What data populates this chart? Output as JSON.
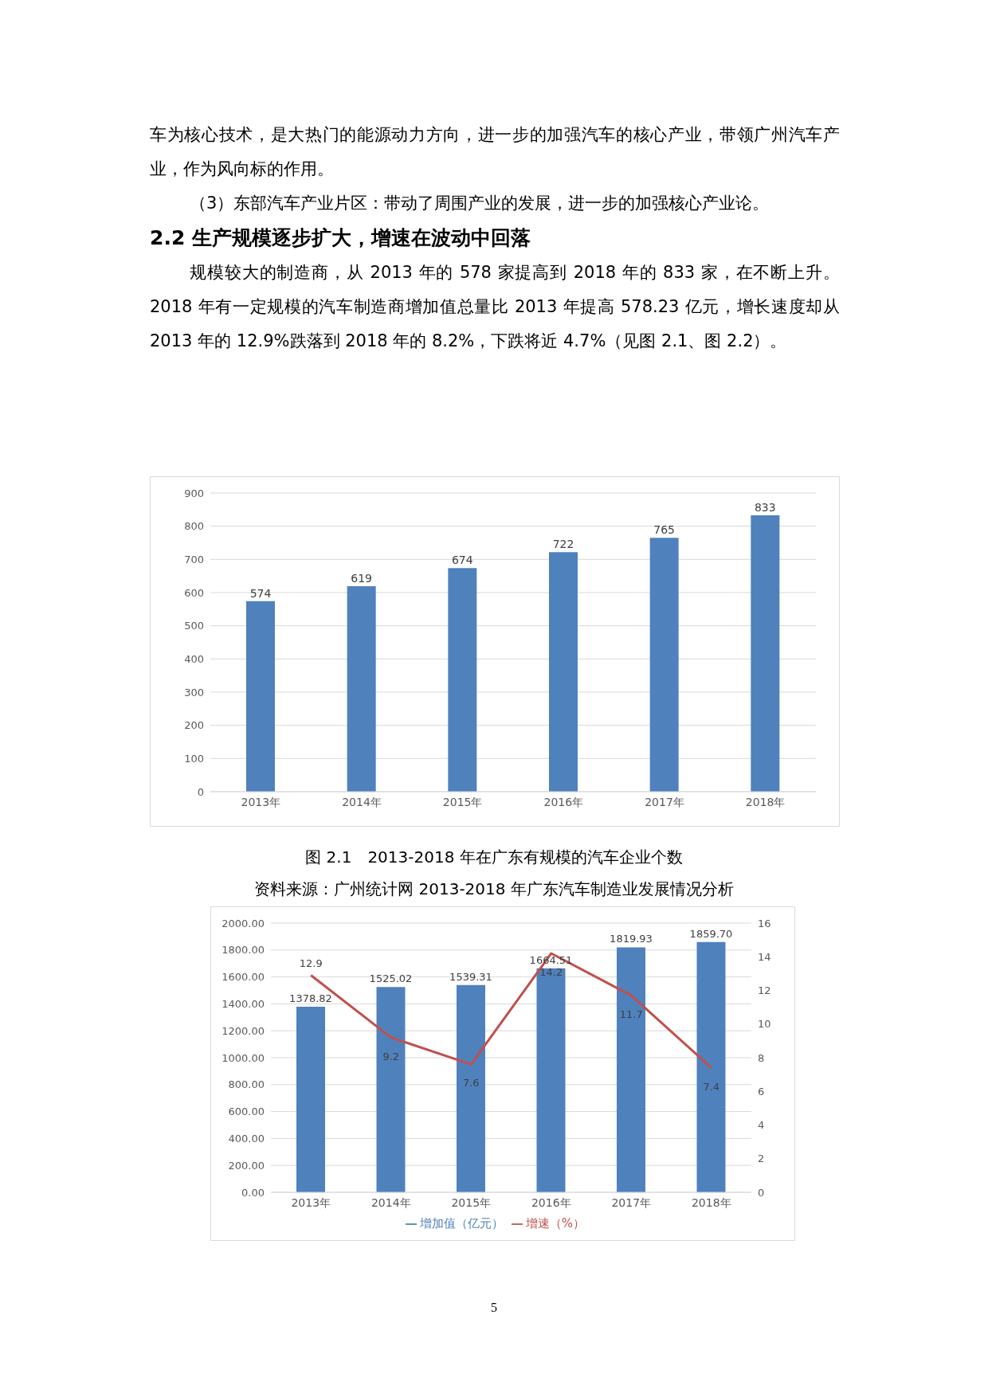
{
  "chart_data": [
    {
      "type": "bar",
      "annotations": [
        "车为核心技术，是大热门的能源动力方向，进一步的加强汽车的核心产业，带领广州汽车产业，作为风向标的作用。",
        "（3）东部汽车产业片区：带动了周围产业的发展，进一步的加强核心产业论。",
        "2.2 生产规模逐步扩大，增速在波动中回落",
        "规模较大的制造商，从 2013 年的 578 家提高到 2018 年的 833 家，在不断上升。2018 年有一定规模的汽车制造商增加值总量比 2013 年提高 578.23 亿元，增长速度却从 2013 年的 12.9%跌落到 2018  年的 8.2%，下跌将近 4.7%（见图 2.1、图 2.2）。"
      ],
      "title": "图 2.1　2013-2018 年在广东有规模的汽车企业个数",
      "subtitle": "资料来源：广州统计网 2013-2018 年广东汽车制造业发展情况分析",
      "categories": [
        "2013年",
        "2014年",
        "2015年",
        "2016年",
        "2017年",
        "2018年"
      ],
      "series": [
        {
          "color": "#4f81bd",
          "values": [
            574,
            619,
            674,
            722,
            765,
            833
          ]
        }
      ],
      "ylim": [
        0,
        900
      ],
      "yticks": [
        0,
        100,
        200,
        300,
        400,
        500,
        600,
        700,
        800,
        900
      ],
      "grid": "y",
      "data_labels": true
    },
    {
      "type": "bar",
      "annotations": [
        "5"
      ],
      "categories": [
        "2013年",
        "2014年",
        "2015年",
        "2016年",
        "2017年",
        "2018年"
      ],
      "series": [
        {
          "name": "增加值（亿元）",
          "color": "#4f81bd",
          "values": [
            1378.82,
            1525.02,
            1539.31,
            1664.51,
            1819.93,
            1859.7
          ],
          "value_labels": [
            "1378.82",
            "1525.02",
            "1539.31",
            "1664.51",
            "1819.93",
            "1859.70"
          ]
        },
        {
          "type": "line",
          "name": "增速（%）",
          "color": "#c0504d",
          "axis": "y2",
          "values": [
            12.9,
            9.2,
            7.6,
            14.2,
            11.7,
            7.4
          ],
          "value_labels": [
            "12.9",
            "9.2",
            "7.6",
            "14.2",
            "11.7",
            "7.4"
          ]
        }
      ],
      "ylim": [
        0,
        2000
      ],
      "yticks": [
        {
          "value": 0,
          "label": "0.00"
        },
        {
          "value": 200,
          "label": "200.00"
        },
        {
          "value": 400,
          "label": "400.00"
        },
        {
          "value": 600,
          "label": "600.00"
        },
        {
          "value": 800,
          "label": "800.00"
        },
        {
          "value": 1000,
          "label": "1000.00"
        },
        {
          "value": 1200,
          "label": "1200.00"
        },
        {
          "value": 1400,
          "label": "1400.00"
        },
        {
          "value": 1600,
          "label": "1600.00"
        },
        {
          "value": 1800,
          "label": "1800.00"
        },
        {
          "value": 2000,
          "label": "2000.00"
        }
      ],
      "y2lim": [
        0,
        16
      ],
      "y2ticks": [
        0,
        2,
        4,
        6,
        8,
        10,
        12,
        14,
        16
      ],
      "grid": "y",
      "legend": "bottom",
      "marker": "none",
      "line_style": "solid"
    }
  ]
}
